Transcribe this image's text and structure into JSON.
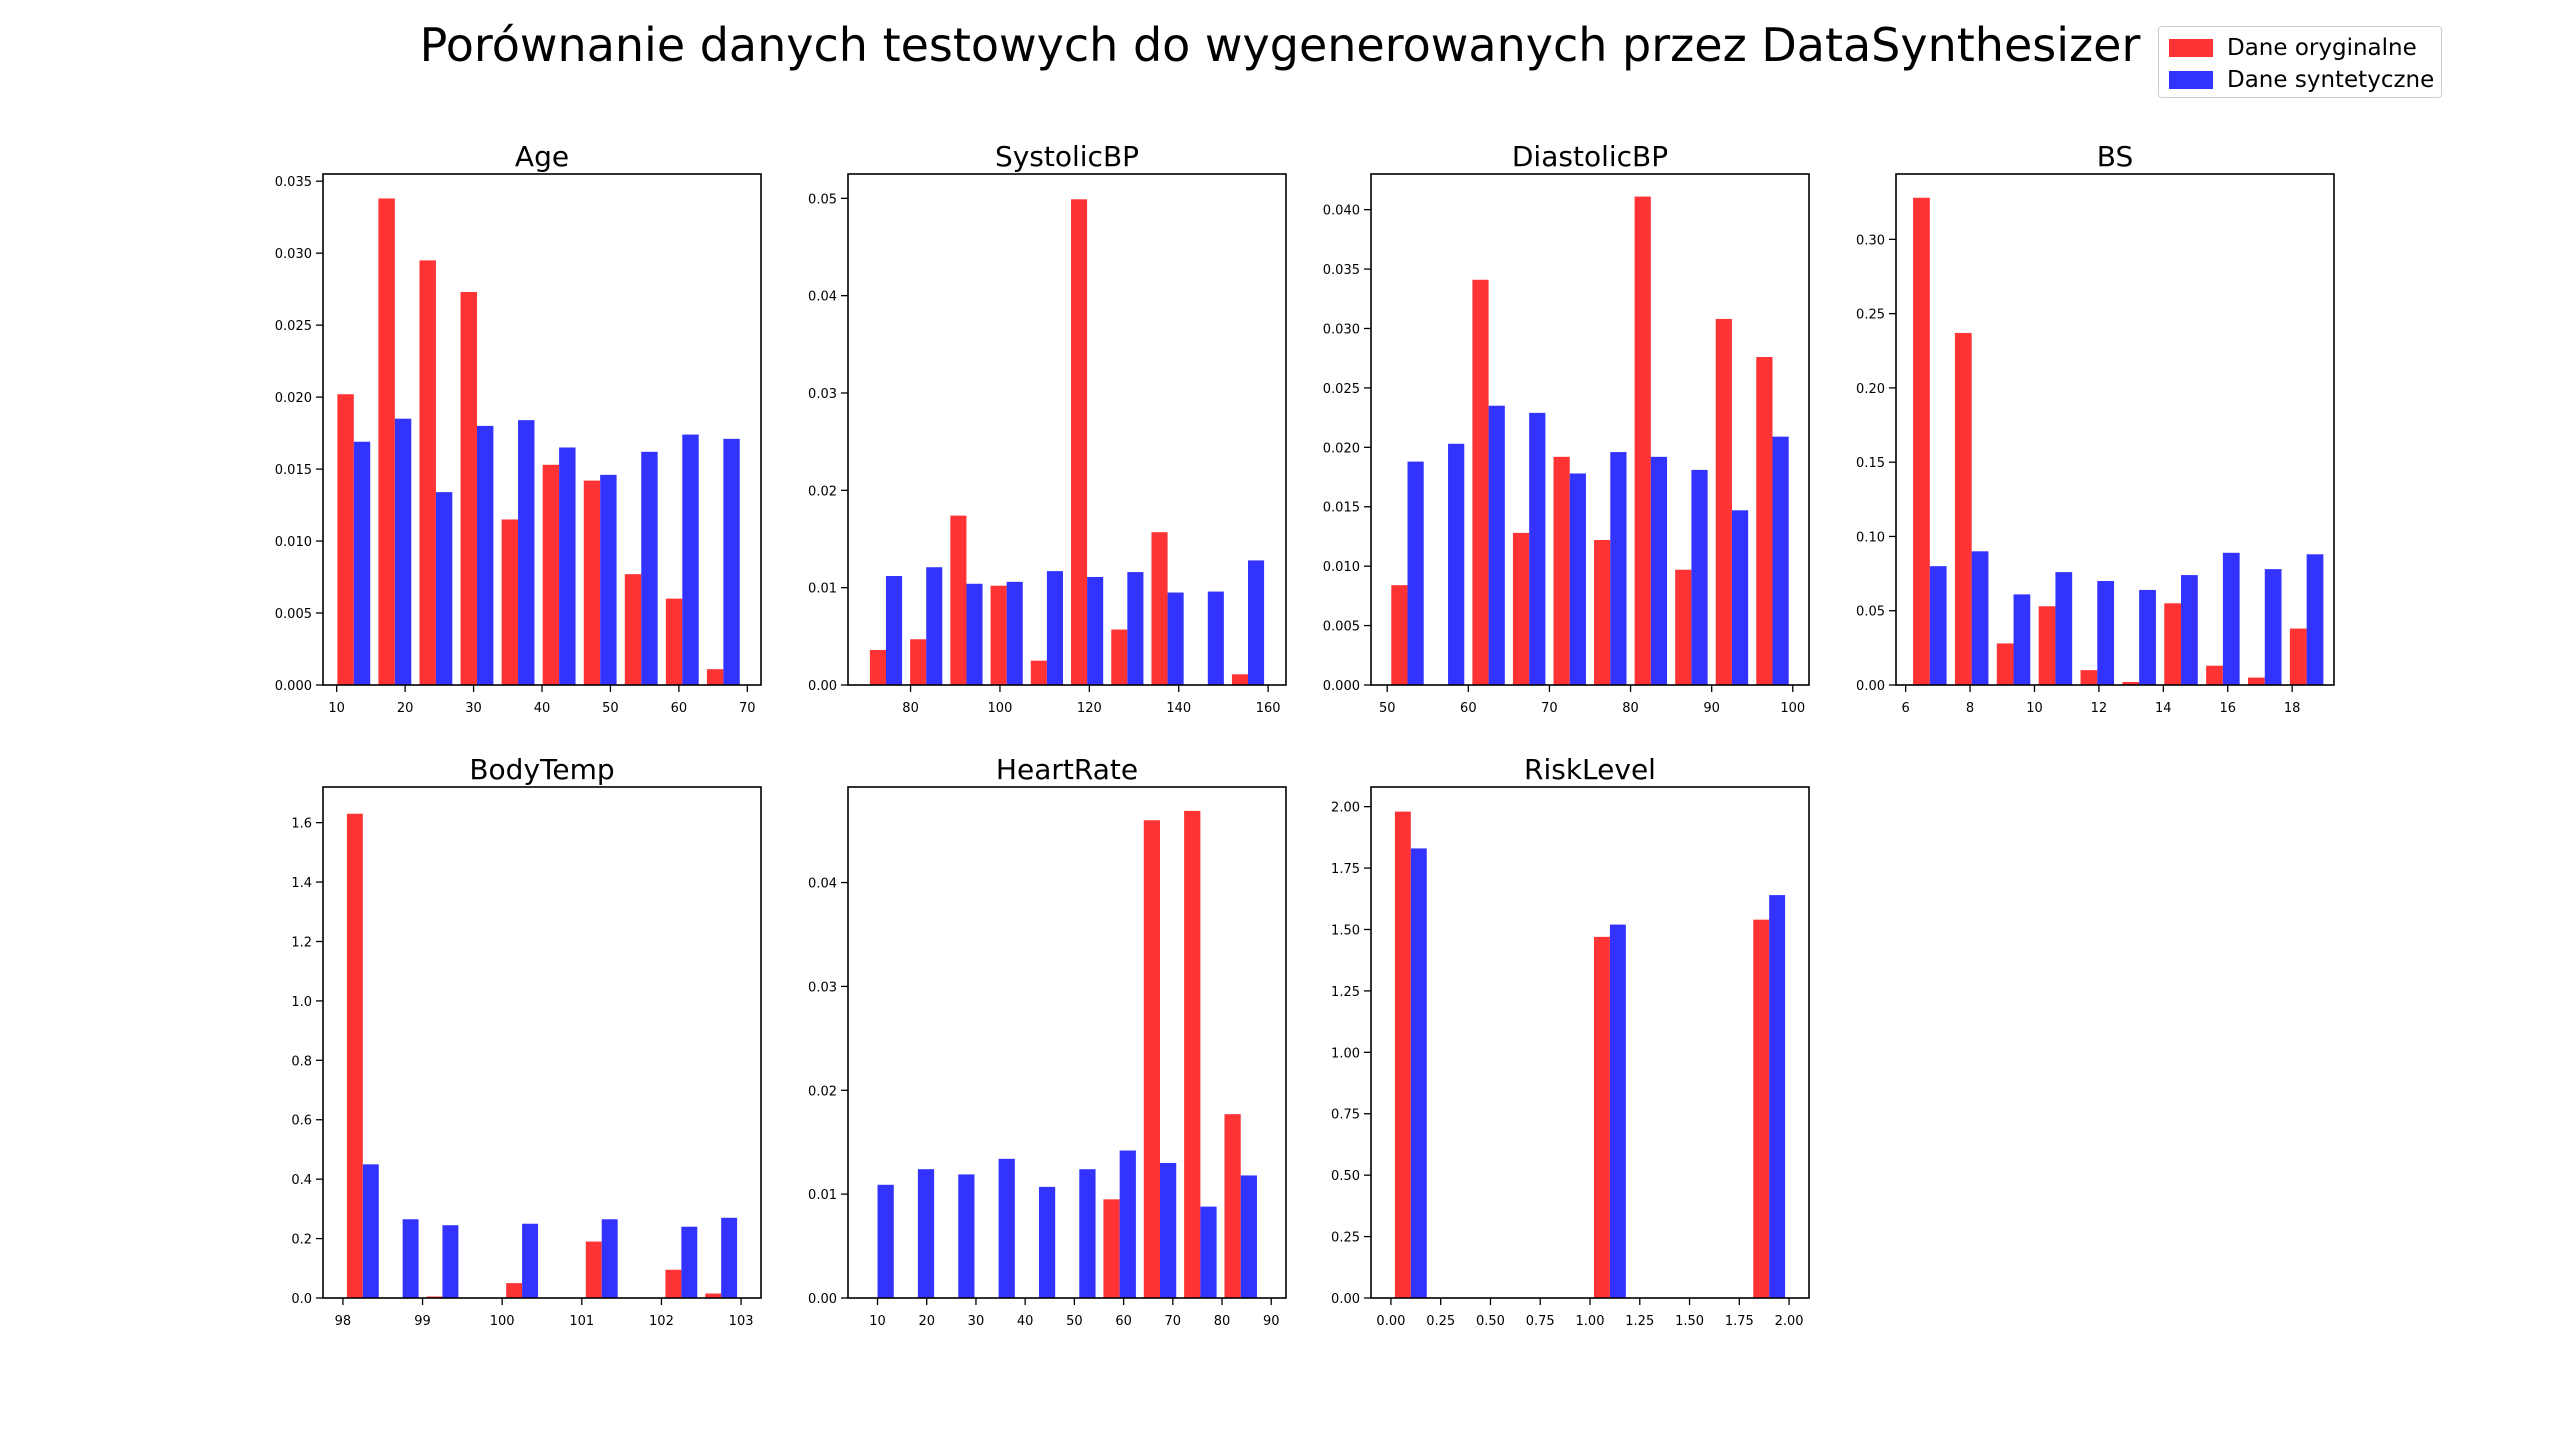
{
  "figure": {
    "suptitle": "Porównanie danych testowych do wygenerowanych przez DataSynthesizer"
  },
  "legend": {
    "items": [
      {
        "label": "Dane oryginalne",
        "color": "#ff3333"
      },
      {
        "label": "Dane syntetyczne",
        "color": "#3333ff"
      }
    ]
  },
  "chart_data": [
    {
      "type": "bar",
      "title": "Age",
      "xlim": [
        8,
        72
      ],
      "ylim": [
        0,
        0.0355
      ],
      "xticks": [
        10,
        20,
        30,
        40,
        50,
        60,
        70
      ],
      "yticks": [
        0.0,
        0.005,
        0.01,
        0.015,
        0.02,
        0.025,
        0.03,
        0.035
      ],
      "ytick_labels": [
        "0.000",
        "0.005",
        "0.010",
        "0.015",
        "0.020",
        "0.025",
        "0.030",
        "0.035"
      ],
      "x": [
        12.5,
        18.5,
        24.5,
        30.5,
        36.5,
        42.5,
        48.5,
        54.5,
        60.5,
        66.5
      ],
      "bar_width": 2.4,
      "series": [
        {
          "color": "#ff3333",
          "values": [
            0.0202,
            0.0338,
            0.0295,
            0.0273,
            0.0115,
            0.0153,
            0.0142,
            0.0077,
            0.006,
            0.0011
          ]
        },
        {
          "color": "#3333ff",
          "values": [
            0.0169,
            0.0185,
            0.0134,
            0.018,
            0.0184,
            0.0165,
            0.0146,
            0.0162,
            0.0174,
            0.0171
          ]
        }
      ]
    },
    {
      "type": "bar",
      "title": "SystolicBP",
      "xlim": [
        66,
        164
      ],
      "ylim": [
        0,
        0.0525
      ],
      "xticks": [
        80,
        100,
        120,
        140,
        160
      ],
      "yticks": [
        0.0,
        0.01,
        0.02,
        0.03,
        0.04,
        0.05
      ],
      "ytick_labels": [
        "0.00",
        "0.01",
        "0.02",
        "0.03",
        "0.04",
        "0.05"
      ],
      "x": [
        74.5,
        83.5,
        92.5,
        101.5,
        110.5,
        119.5,
        128.5,
        137.5,
        146.5,
        155.5
      ],
      "bar_width": 3.6,
      "series": [
        {
          "color": "#ff3333",
          "values": [
            0.0036,
            0.0047,
            0.0174,
            0.0102,
            0.0025,
            0.0499,
            0.0057,
            0.0157,
            0.0,
            0.0011
          ]
        },
        {
          "color": "#3333ff",
          "values": [
            0.0112,
            0.0121,
            0.0104,
            0.0106,
            0.0117,
            0.0111,
            0.0116,
            0.0095,
            0.0096,
            0.0128
          ]
        }
      ]
    },
    {
      "type": "bar",
      "title": "DiastolicBP",
      "xlim": [
        48,
        102
      ],
      "ylim": [
        0,
        0.043
      ],
      "xticks": [
        50,
        60,
        70,
        80,
        90,
        100
      ],
      "yticks": [
        0.0,
        0.005,
        0.01,
        0.015,
        0.02,
        0.025,
        0.03,
        0.035,
        0.04
      ],
      "ytick_labels": [
        "0.000",
        "0.005",
        "0.010",
        "0.015",
        "0.020",
        "0.025",
        "0.030",
        "0.035",
        "0.040"
      ],
      "x": [
        52.5,
        57.5,
        62.5,
        67.5,
        72.5,
        77.5,
        82.5,
        87.5,
        92.5,
        97.5
      ],
      "bar_width": 2.0,
      "series": [
        {
          "color": "#ff3333",
          "values": [
            0.0084,
            0.0,
            0.0341,
            0.0128,
            0.0192,
            0.0122,
            0.0411,
            0.0097,
            0.0308,
            0.0276
          ]
        },
        {
          "color": "#3333ff",
          "values": [
            0.0188,
            0.0203,
            0.0235,
            0.0229,
            0.0178,
            0.0196,
            0.0192,
            0.0181,
            0.0147,
            0.0209
          ]
        }
      ]
    },
    {
      "type": "bar",
      "title": "BS",
      "xlim": [
        5.7,
        19.3
      ],
      "ylim": [
        0,
        0.344
      ],
      "xticks": [
        6,
        8,
        10,
        12,
        14,
        16,
        18
      ],
      "yticks": [
        0.0,
        0.05,
        0.1,
        0.15,
        0.2,
        0.25,
        0.3
      ],
      "ytick_labels": [
        "0.00",
        "0.05",
        "0.10",
        "0.15",
        "0.20",
        "0.25",
        "0.30"
      ],
      "x": [
        6.75,
        8.05,
        9.35,
        10.65,
        11.95,
        13.25,
        14.55,
        15.85,
        17.15,
        18.45
      ],
      "bar_width": 0.52,
      "series": [
        {
          "color": "#ff3333",
          "values": [
            0.328,
            0.237,
            0.028,
            0.053,
            0.01,
            0.002,
            0.055,
            0.013,
            0.005,
            0.038
          ]
        },
        {
          "color": "#3333ff",
          "values": [
            0.08,
            0.09,
            0.061,
            0.076,
            0.07,
            0.064,
            0.074,
            0.089,
            0.078,
            0.088
          ]
        }
      ]
    },
    {
      "type": "bar",
      "title": "BodyTemp",
      "xlim": [
        97.75,
        103.25
      ],
      "ylim": [
        0,
        1.72
      ],
      "xticks": [
        98,
        99,
        100,
        101,
        102,
        103
      ],
      "yticks": [
        0.0,
        0.2,
        0.4,
        0.6,
        0.8,
        1.0,
        1.2,
        1.4,
        1.6
      ],
      "ytick_labels": [
        "0.0",
        "0.2",
        "0.4",
        "0.6",
        "0.8",
        "1.0",
        "1.2",
        "1.4",
        "1.6"
      ],
      "x": [
        98.25,
        98.75,
        99.25,
        99.75,
        100.25,
        100.75,
        101.25,
        101.75,
        102.25,
        102.75
      ],
      "bar_width": 0.2,
      "series": [
        {
          "color": "#ff3333",
          "values": [
            1.63,
            0.0,
            0.005,
            0.0,
            0.05,
            0.0,
            0.19,
            0.0,
            0.095,
            0.015
          ]
        },
        {
          "color": "#3333ff",
          "values": [
            0.45,
            0.265,
            0.245,
            0.0,
            0.25,
            0.0,
            0.265,
            0.0,
            0.24,
            0.27
          ]
        }
      ]
    },
    {
      "type": "bar",
      "title": "HeartRate",
      "xlim": [
        4,
        93
      ],
      "ylim": [
        0,
        0.0492
      ],
      "xticks": [
        10,
        20,
        30,
        40,
        50,
        60,
        70,
        80,
        90
      ],
      "yticks": [
        0.0,
        0.01,
        0.02,
        0.03,
        0.04
      ],
      "ytick_labels": [
        "0.00",
        "0.01",
        "0.02",
        "0.03",
        "0.04"
      ],
      "x": [
        10.0,
        18.2,
        26.4,
        34.6,
        42.8,
        51.0,
        59.2,
        67.4,
        75.6,
        83.8
      ],
      "bar_width": 3.3,
      "series": [
        {
          "color": "#ff3333",
          "values": [
            0.0,
            0.0,
            0.0,
            0.0,
            0.0,
            0.0,
            0.0095,
            0.046,
            0.0469,
            0.0177
          ]
        },
        {
          "color": "#3333ff",
          "values": [
            0.0109,
            0.0124,
            0.0119,
            0.0134,
            0.0107,
            0.0124,
            0.0142,
            0.013,
            0.0088,
            0.0118
          ]
        }
      ]
    },
    {
      "type": "bar",
      "title": "RiskLevel",
      "xlim": [
        -0.1,
        2.1
      ],
      "ylim": [
        0,
        2.08
      ],
      "xticks": [
        0.0,
        0.25,
        0.5,
        0.75,
        1.0,
        1.25,
        1.5,
        1.75,
        2.0
      ],
      "xtick_labels": [
        "0.00",
        "0.25",
        "0.50",
        "0.75",
        "1.00",
        "1.25",
        "1.50",
        "1.75",
        "2.00"
      ],
      "yticks": [
        0.0,
        0.25,
        0.5,
        0.75,
        1.0,
        1.25,
        1.5,
        1.75,
        2.0
      ],
      "ytick_labels": [
        "0.00",
        "0.25",
        "0.50",
        "0.75",
        "1.00",
        "1.25",
        "1.50",
        "1.75",
        "2.00"
      ],
      "x": [
        0.1,
        1.1,
        1.9
      ],
      "bar_width": 0.08,
      "series": [
        {
          "color": "#ff3333",
          "values": [
            1.98,
            1.47,
            1.54
          ]
        },
        {
          "color": "#3333ff",
          "values": [
            1.83,
            1.52,
            1.64
          ]
        }
      ]
    }
  ]
}
